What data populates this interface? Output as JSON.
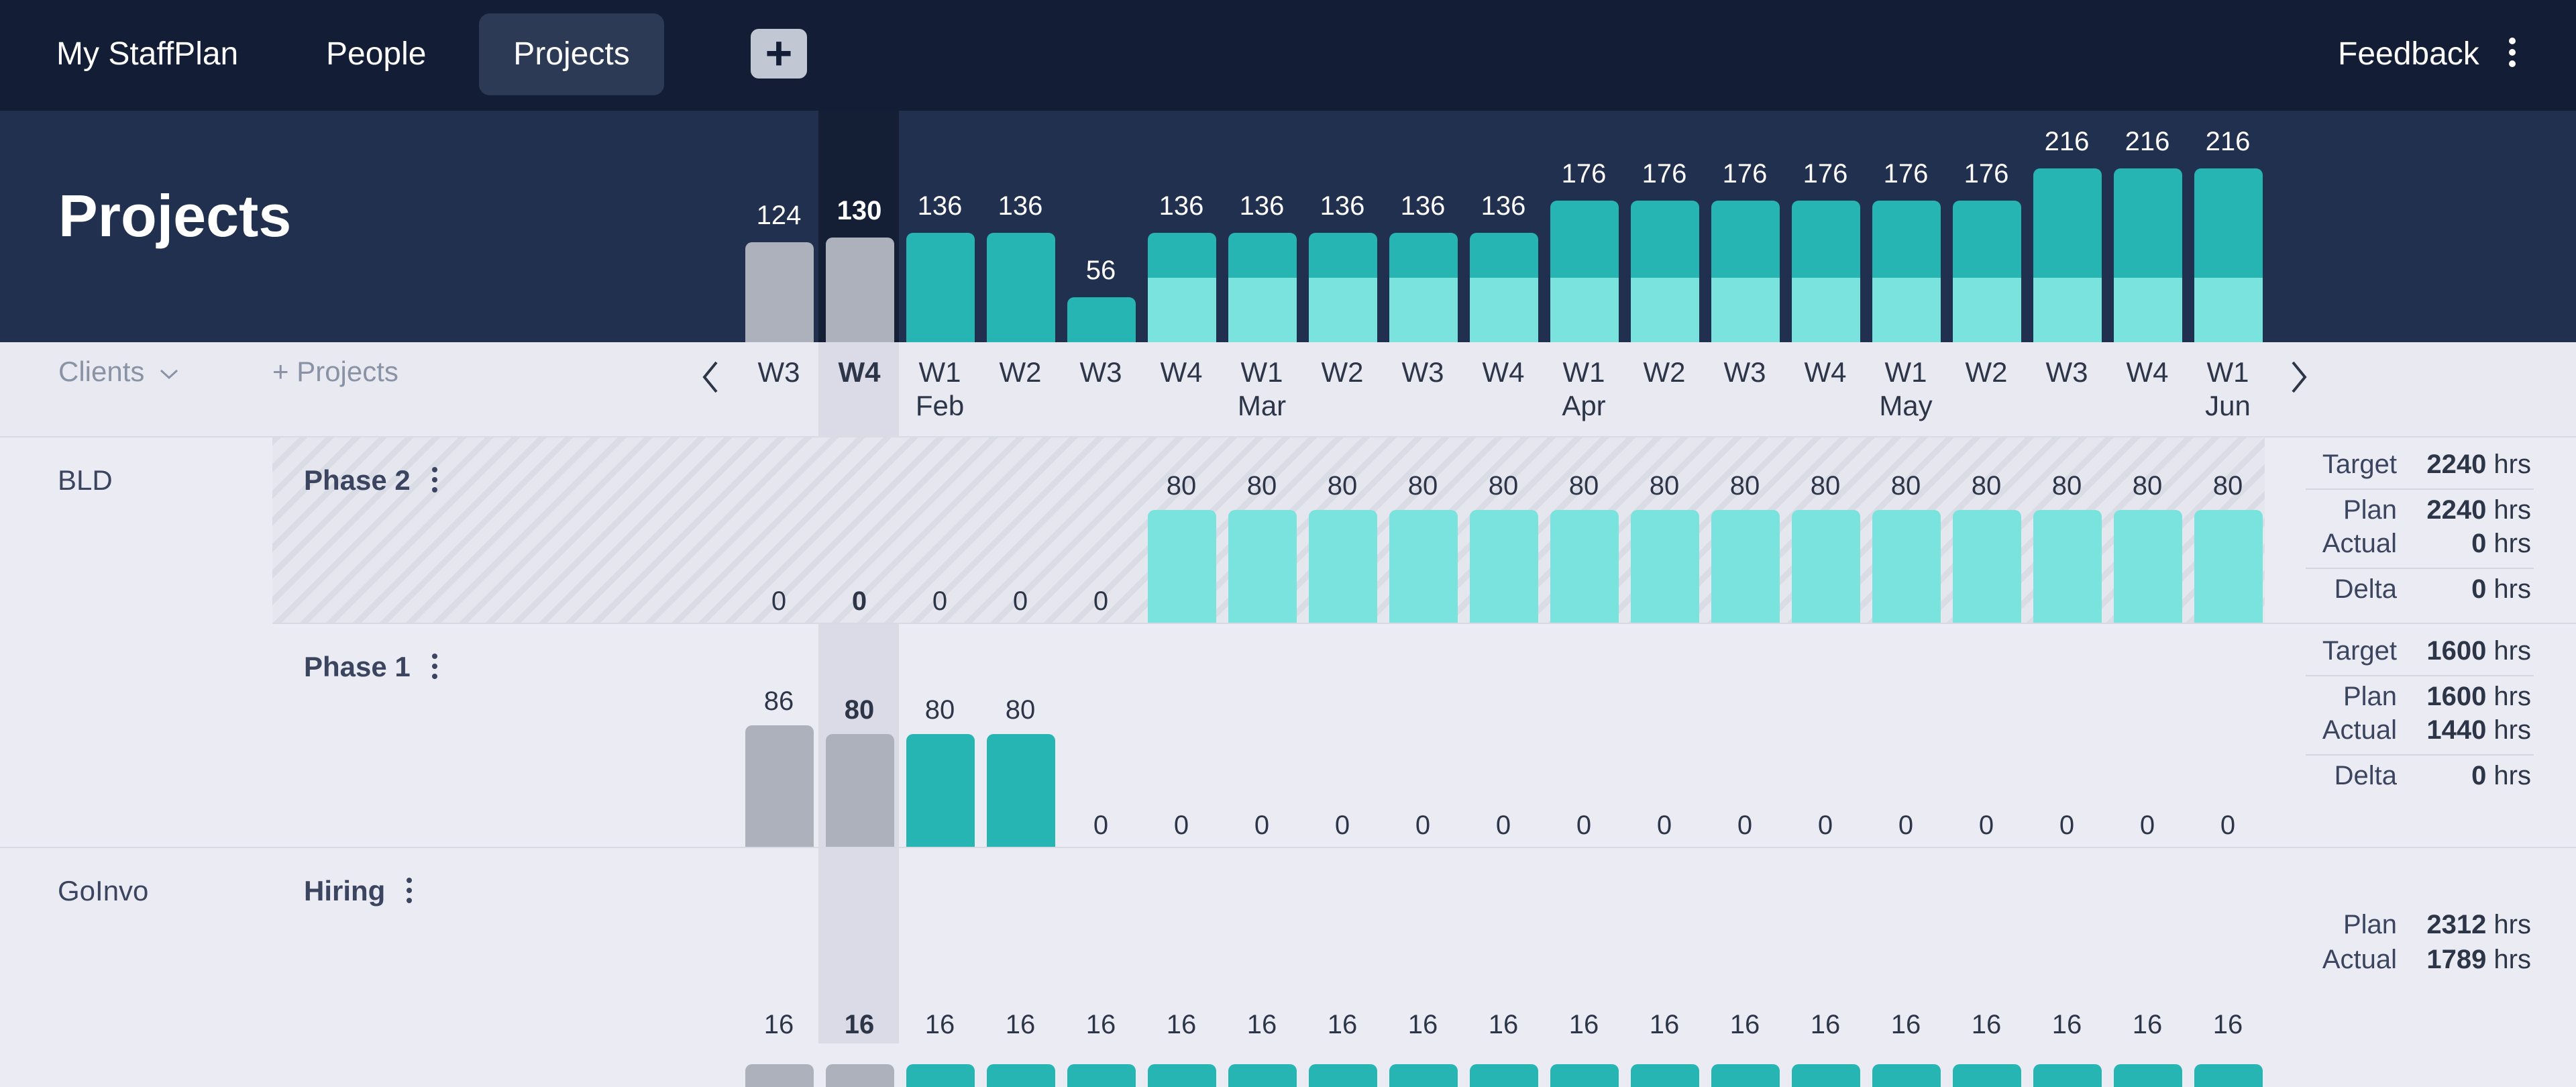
{
  "nav": {
    "brand": "My StaffPlan",
    "people": "People",
    "projects": "Projects",
    "add": "+",
    "feedback": "Feedback"
  },
  "page_title": "Projects",
  "filters": {
    "clients": "Clients",
    "clients_caret": "⌵",
    "projects": "+ Projects"
  },
  "weeks": [
    {
      "w": "W3",
      "m": ""
    },
    {
      "w": "W4",
      "m": "",
      "current": true
    },
    {
      "w": "W1",
      "m": "Feb"
    },
    {
      "w": "W2",
      "m": ""
    },
    {
      "w": "W3",
      "m": ""
    },
    {
      "w": "W4",
      "m": ""
    },
    {
      "w": "W1",
      "m": "Mar"
    },
    {
      "w": "W2",
      "m": ""
    },
    {
      "w": "W3",
      "m": ""
    },
    {
      "w": "W4",
      "m": ""
    },
    {
      "w": "W1",
      "m": "Apr"
    },
    {
      "w": "W2",
      "m": ""
    },
    {
      "w": "W3",
      "m": ""
    },
    {
      "w": "W4",
      "m": ""
    },
    {
      "w": "W1",
      "m": "May"
    },
    {
      "w": "W2",
      "m": ""
    },
    {
      "w": "W3",
      "m": ""
    },
    {
      "w": "W4",
      "m": ""
    },
    {
      "w": "W1",
      "m": "Jun"
    }
  ],
  "summary_totals": [
    124,
    130,
    136,
    136,
    56,
    136,
    136,
    136,
    136,
    136,
    176,
    176,
    176,
    176,
    176,
    176,
    216,
    216,
    216
  ],
  "summary_split": [
    null,
    null,
    null,
    null,
    null,
    80,
    80,
    80,
    80,
    80,
    80,
    80,
    80,
    80,
    80,
    80,
    80,
    80,
    80
  ],
  "past_week_count": 2,
  "projects": [
    {
      "client": "BLD",
      "name": "Phase 2",
      "hatched": true,
      "values": [
        0,
        0,
        0,
        0,
        0,
        80,
        80,
        80,
        80,
        80,
        80,
        80,
        80,
        80,
        80,
        80,
        80,
        80,
        80
      ],
      "stats": [
        {
          "label": "Target",
          "value": "2240",
          "unit": "hrs"
        },
        {
          "label": "Plan",
          "value": "2240",
          "unit": "hrs"
        },
        {
          "label": "Actual",
          "value": "0",
          "unit": "hrs"
        },
        {
          "label": "Delta",
          "value": "0",
          "unit": "hrs"
        }
      ]
    },
    {
      "client": "",
      "name": "Phase 1",
      "hatched": false,
      "values": [
        86,
        80,
        80,
        80,
        0,
        0,
        0,
        0,
        0,
        0,
        0,
        0,
        0,
        0,
        0,
        0,
        0,
        0,
        0
      ],
      "stats": [
        {
          "label": "Target",
          "value": "1600",
          "unit": "hrs"
        },
        {
          "label": "Plan",
          "value": "1600",
          "unit": "hrs"
        },
        {
          "label": "Actual",
          "value": "1440",
          "unit": "hrs"
        },
        {
          "label": "Delta",
          "value": "0",
          "unit": "hrs"
        }
      ]
    },
    {
      "client": "GoInvo",
      "name": "Hiring",
      "hatched": false,
      "values": [
        16,
        16,
        16,
        16,
        16,
        16,
        16,
        16,
        16,
        16,
        16,
        16,
        16,
        16,
        16,
        16,
        16,
        16,
        16
      ],
      "stats": [
        {
          "label": "Plan",
          "value": "2312",
          "unit": "hrs"
        },
        {
          "label": "Actual",
          "value": "1789",
          "unit": "hrs"
        }
      ]
    }
  ],
  "colors": {
    "nav_bg": "#131e36",
    "header_bg": "#20304e",
    "teal_dark": "#26b5b2",
    "teal_light": "#7ae3de",
    "past_gray": "#adb1bc"
  }
}
